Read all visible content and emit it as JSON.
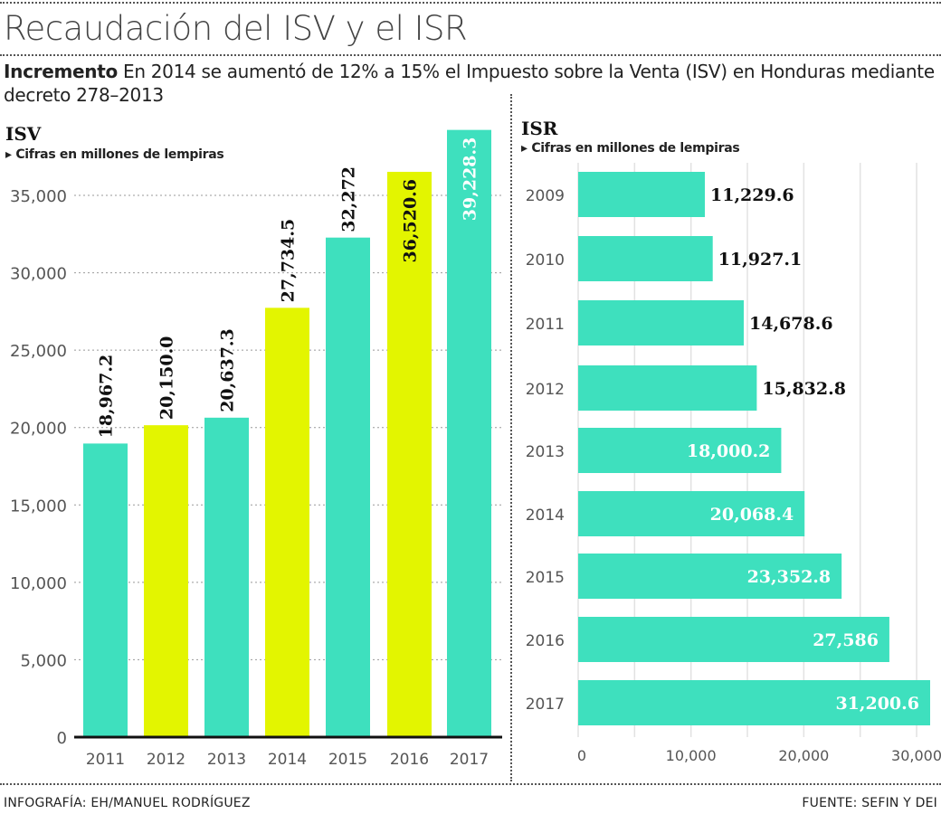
{
  "title": "Recaudación del ISV y el ISR",
  "subtitle_bold": "Incremento",
  "subtitle": "En 2014 se aumentó de 12% a 15% el Impuesto sobre la Venta (ISV) en Honduras mediante decreto 278–2013",
  "colors": {
    "teal": "#3ee0be",
    "yellow": "#e3f500"
  },
  "chart_data": [
    {
      "type": "bar",
      "orientation": "vertical",
      "title": "ISV",
      "subtitle": "Cifras en millones de lempiras",
      "categories": [
        "2011",
        "2012",
        "2013",
        "2014",
        "2015",
        "2016",
        "2017"
      ],
      "values": [
        18967.2,
        20150.0,
        20637.3,
        27734.5,
        32272,
        36520.6,
        39228.3
      ],
      "labels": [
        "18,967.2",
        "20,150.0",
        "20,637.3",
        "27,734.5",
        "32,272",
        "36,520.6",
        "39,228.3"
      ],
      "bar_colors": [
        "teal",
        "yellow",
        "teal",
        "yellow",
        "teal",
        "yellow",
        "teal"
      ],
      "yticks": [
        0,
        5000,
        10000,
        15000,
        20000,
        25000,
        30000,
        35000
      ],
      "ytick_labels": [
        "0",
        "5,000",
        "10,000",
        "15,000",
        "20,000",
        "25,000",
        "30,000",
        "35,000"
      ],
      "ylim": [
        0,
        40000
      ],
      "grid": "horizontal dotted"
    },
    {
      "type": "bar",
      "orientation": "horizontal",
      "title": "ISR",
      "subtitle": "Cifras en millones de lempiras",
      "categories": [
        "2009",
        "2010",
        "2011",
        "2012",
        "2013",
        "2014",
        "2015",
        "2016",
        "2017"
      ],
      "values": [
        11229.6,
        11927.1,
        14678.6,
        15832.8,
        18000.2,
        20068.4,
        23352.8,
        27586,
        31200.6
      ],
      "labels": [
        "11,229.6",
        "11,927.1",
        "14,678.6",
        "15,832.8",
        "18,000.2",
        "20,068.4",
        "23,352.8",
        "27,586",
        "31,200.6"
      ],
      "bar_color": "teal",
      "xticks": [
        0,
        10000,
        20000,
        30000
      ],
      "xtick_labels": [
        "0",
        "10,000",
        "20,000",
        "30,000"
      ],
      "xlim": [
        0,
        31200.6
      ],
      "grid": "vertical"
    }
  ],
  "footer": {
    "credit": "INFOGRAFÍA: EH/MANUEL RODRÍGUEZ",
    "source": "FUENTE: SEFIN Y DEI"
  }
}
